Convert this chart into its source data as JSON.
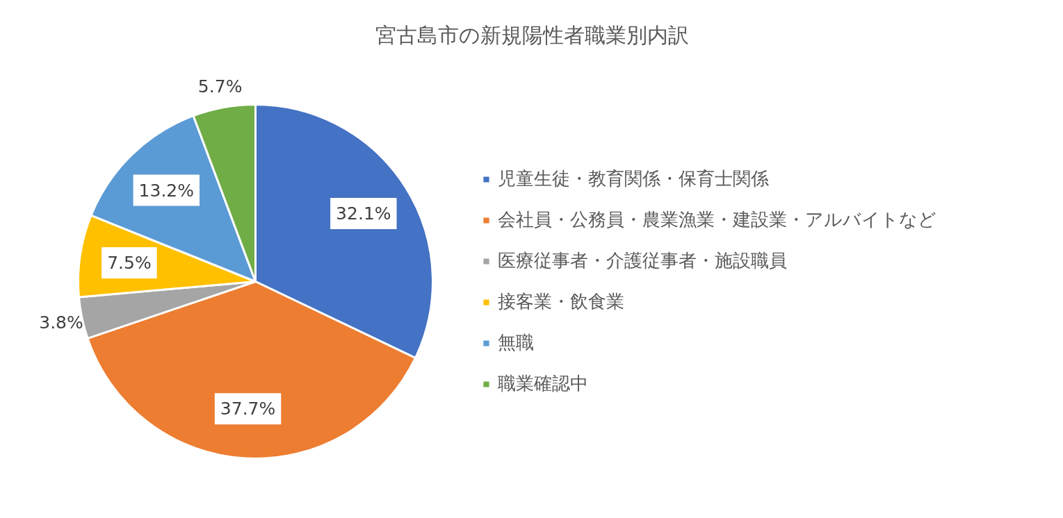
{
  "chart_data": {
    "type": "pie",
    "title": "宮古島市の新規陽性者職業別内訳",
    "categories": [
      "児童生徒・教育関係・保育士関係",
      "会社員・公務員・農業漁業・建設業・アルバイトなど",
      "医療従事者・介護従事者・施設職員",
      "接客業・飲食業",
      "無職",
      "職業確認中"
    ],
    "values": [
      32.1,
      37.7,
      3.8,
      7.5,
      13.2,
      5.7
    ],
    "colors": [
      "#4472c4",
      "#ed7d31",
      "#a5a5a5",
      "#ffc000",
      "#5b9bd5",
      "#70ad47"
    ],
    "value_labels": [
      "32.1%",
      "37.7%",
      "3.8%",
      "7.5%",
      "13.2%",
      "5.7%"
    ],
    "legend": "right"
  }
}
